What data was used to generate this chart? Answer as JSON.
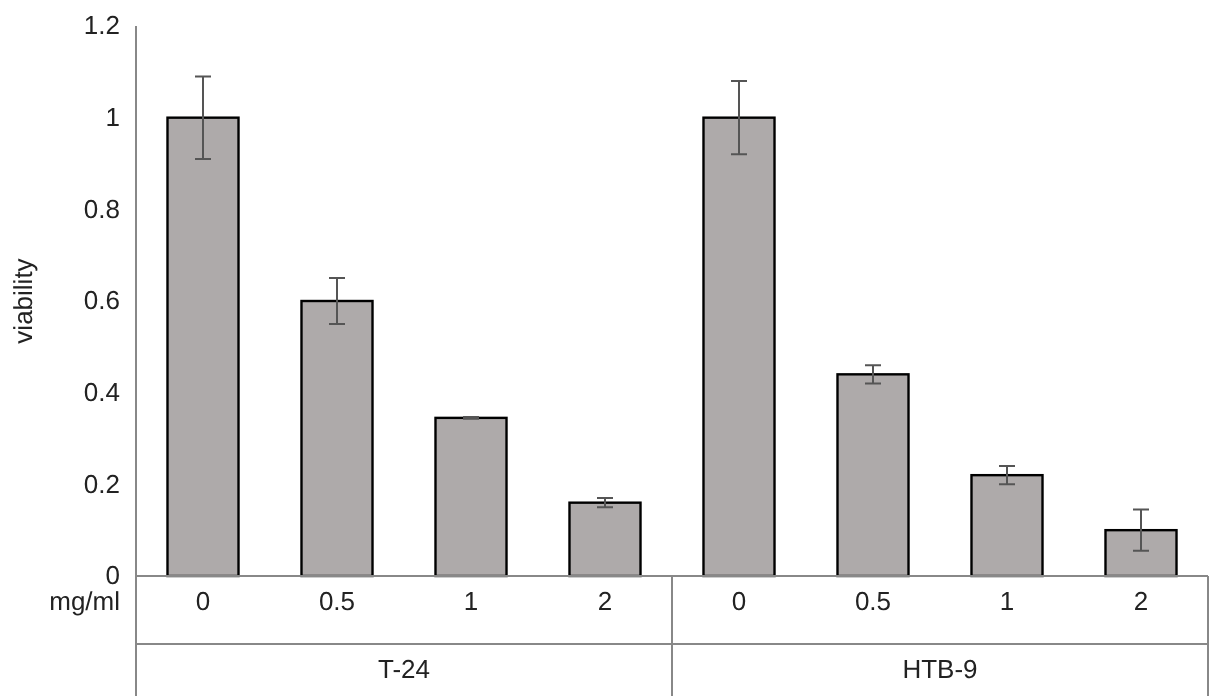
{
  "chart_data": {
    "type": "bar",
    "ylabel": "viability",
    "xlabel": "mg/ml",
    "categories": [
      "0",
      "0.5",
      "1",
      "2",
      "0",
      "0.5",
      "1",
      "2"
    ],
    "values": [
      1.0,
      0.6,
      0.345,
      0.16,
      1.0,
      0.44,
      0.22,
      0.1
    ],
    "errors": [
      0.09,
      0.05,
      0.002,
      0.01,
      0.08,
      0.02,
      0.02,
      0.045
    ],
    "color": "#aeaaaa",
    "ylim": [
      0,
      1.2
    ],
    "yticks": [
      0,
      0.2,
      0.4,
      0.6,
      0.8,
      1,
      1.2
    ],
    "annotations": [
      "T-24",
      "HTB-9"
    ]
  }
}
